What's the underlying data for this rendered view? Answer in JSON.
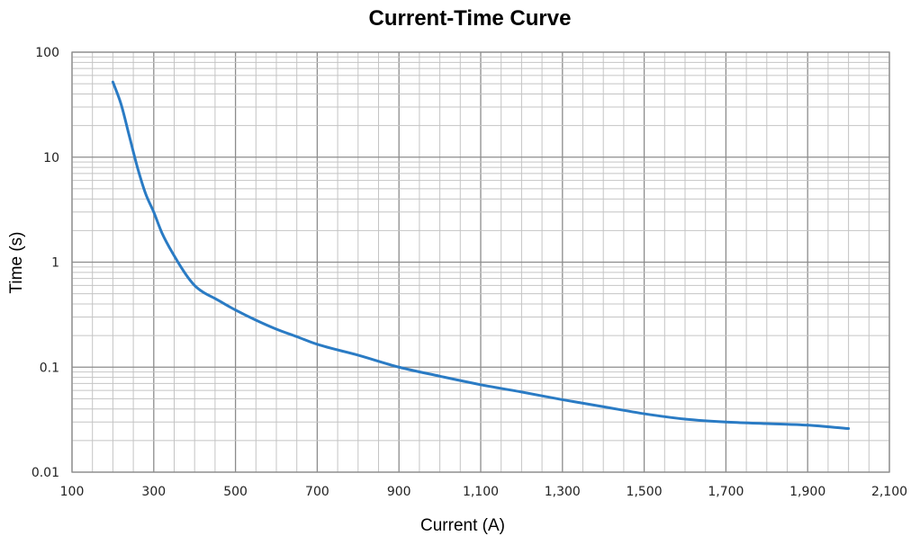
{
  "chart_data": {
    "type": "line",
    "title": "Current-Time Curve",
    "xlabel": "Current (A)",
    "ylabel": "Time (s)",
    "xlim": [
      100,
      2100
    ],
    "ylim": [
      0.01,
      100
    ],
    "yscale": "log",
    "grid": true,
    "x_tick_labels": [
      "100",
      "300",
      "500",
      "700",
      "900",
      "1,100",
      "1,300",
      "1,500",
      "1,700",
      "1,900",
      "2,100"
    ],
    "y_tick_labels": [
      "0.01",
      "0.1",
      "1",
      "10",
      "100"
    ],
    "colors": {
      "curve": "#2a7bc4"
    },
    "series": [
      {
        "x": [
          200,
          220,
          240,
          260,
          280,
          300,
          320,
          350,
          380,
          400,
          420,
          450,
          500,
          550,
          600,
          650,
          700,
          800,
          900,
          1000,
          1100,
          1200,
          1300,
          1400,
          1500,
          1600,
          1700,
          1800,
          1900,
          2000
        ],
        "y": [
          52,
          32,
          16,
          8,
          4.5,
          3,
          1.9,
          1.15,
          0.75,
          0.6,
          0.52,
          0.45,
          0.35,
          0.28,
          0.23,
          0.195,
          0.165,
          0.13,
          0.1,
          0.082,
          0.068,
          0.058,
          0.049,
          0.042,
          0.036,
          0.032,
          0.03,
          0.029,
          0.028,
          0.026
        ]
      }
    ]
  }
}
